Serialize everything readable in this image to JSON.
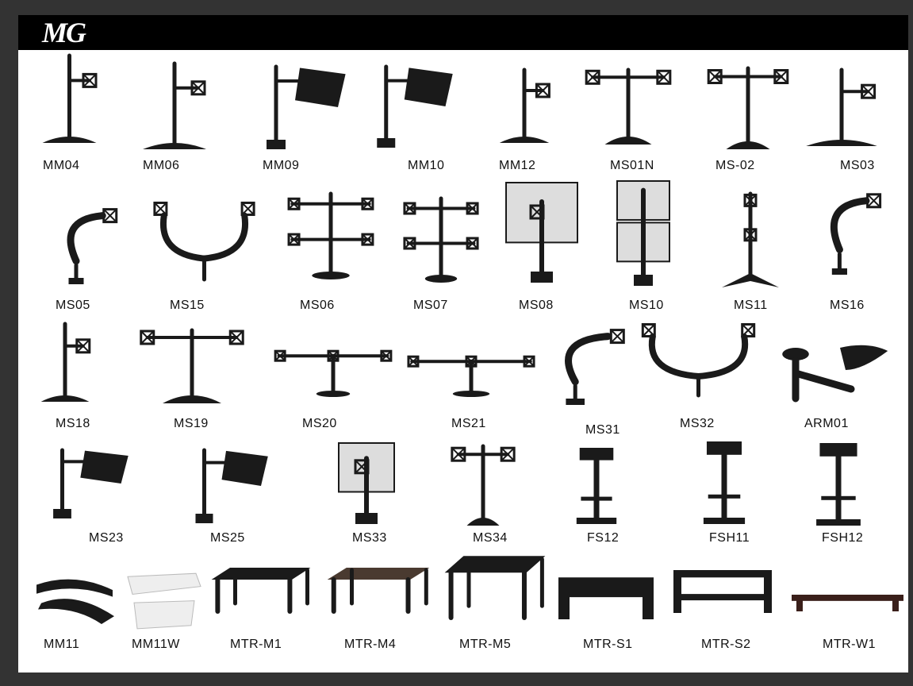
{
  "brand": {
    "logo_text": "MG"
  },
  "products": [
    "MM04",
    "MM06",
    "MM09",
    "MM10",
    "MM12",
    "MS01N",
    "MS-02",
    "MS03",
    "MS05",
    "MS15",
    "MS06",
    "MS07",
    "MS08",
    "MS10",
    "MS11",
    "MS16",
    "MS18",
    "MS19",
    "MS20",
    "MS21",
    "MS31",
    "MS32",
    "ARM01",
    "MS23",
    "MS25",
    "MS33",
    "MS34",
    "FS12",
    "FSH11",
    "FSH12",
    "MM11",
    "MM11W",
    "MTR-M1",
    "MTR-M4",
    "MTR-M5",
    "MTR-S1",
    "MTR-S2",
    "MTR-W1"
  ],
  "colors": {
    "frame": "#333333",
    "header": "#000000",
    "product": "#1a1a1a"
  }
}
